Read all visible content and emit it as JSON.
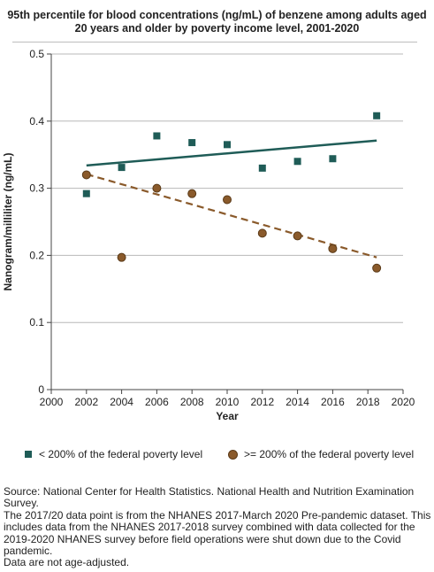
{
  "chart_data": {
    "type": "scatter",
    "title": "95th percentile for blood concentrations (ng/mL) of benzene among adults aged 20 years and older by poverty income level, 2001-2020",
    "xlabel": "Year",
    "ylabel": "Nanogram/milliliter (ng/mL)",
    "xlim": [
      2000,
      2020
    ],
    "ylim": [
      0,
      0.5
    ],
    "xticks": [
      "2000",
      "2002",
      "2004",
      "2006",
      "2008",
      "2010",
      "2012",
      "2014",
      "2016",
      "2018",
      "2020"
    ],
    "yticks": [
      "0",
      "0.1",
      "0.2",
      "0.3",
      "0.4",
      "0.5"
    ],
    "grid": "horizontal",
    "legend_position": "bottom",
    "series": [
      {
        "name": "< 200% of the federal poverty level",
        "marker": "square",
        "color": "#1f5c57",
        "x": [
          2002,
          2004,
          2006,
          2008,
          2010,
          2012,
          2014,
          2016,
          2018.5
        ],
        "values": [
          0.292,
          0.331,
          0.378,
          0.368,
          0.365,
          0.33,
          0.34,
          0.344,
          0.408
        ],
        "trend": {
          "style": "solid",
          "x": [
            2002,
            2018.5
          ],
          "y": [
            0.334,
            0.371
          ]
        }
      },
      {
        "name": ">= 200% of the federal poverty level",
        "marker": "circle",
        "color": "#8a5a2b",
        "x": [
          2002,
          2004,
          2006,
          2008,
          2010,
          2012,
          2014,
          2016,
          2018.5
        ],
        "values": [
          0.32,
          0.197,
          0.3,
          0.292,
          0.283,
          0.233,
          0.229,
          0.21,
          0.181
        ],
        "trend": {
          "style": "dashed",
          "x": [
            2002,
            2018.5
          ],
          "y": [
            0.321,
            0.197
          ]
        }
      }
    ]
  },
  "notes": [
    "Source: National Center for Health Statistics. National Health and Nutrition Examination Survey.",
    "The 2017/20 data point is from the NHANES 2017-March 2020 Pre-pandemic dataset. This includes data from the NHANES 2017-2018 survey combined with data collected for the 2019-2020 NHANES survey before field operations were shut down due to the Covid pandemic.",
    "Data are not age-adjusted."
  ]
}
